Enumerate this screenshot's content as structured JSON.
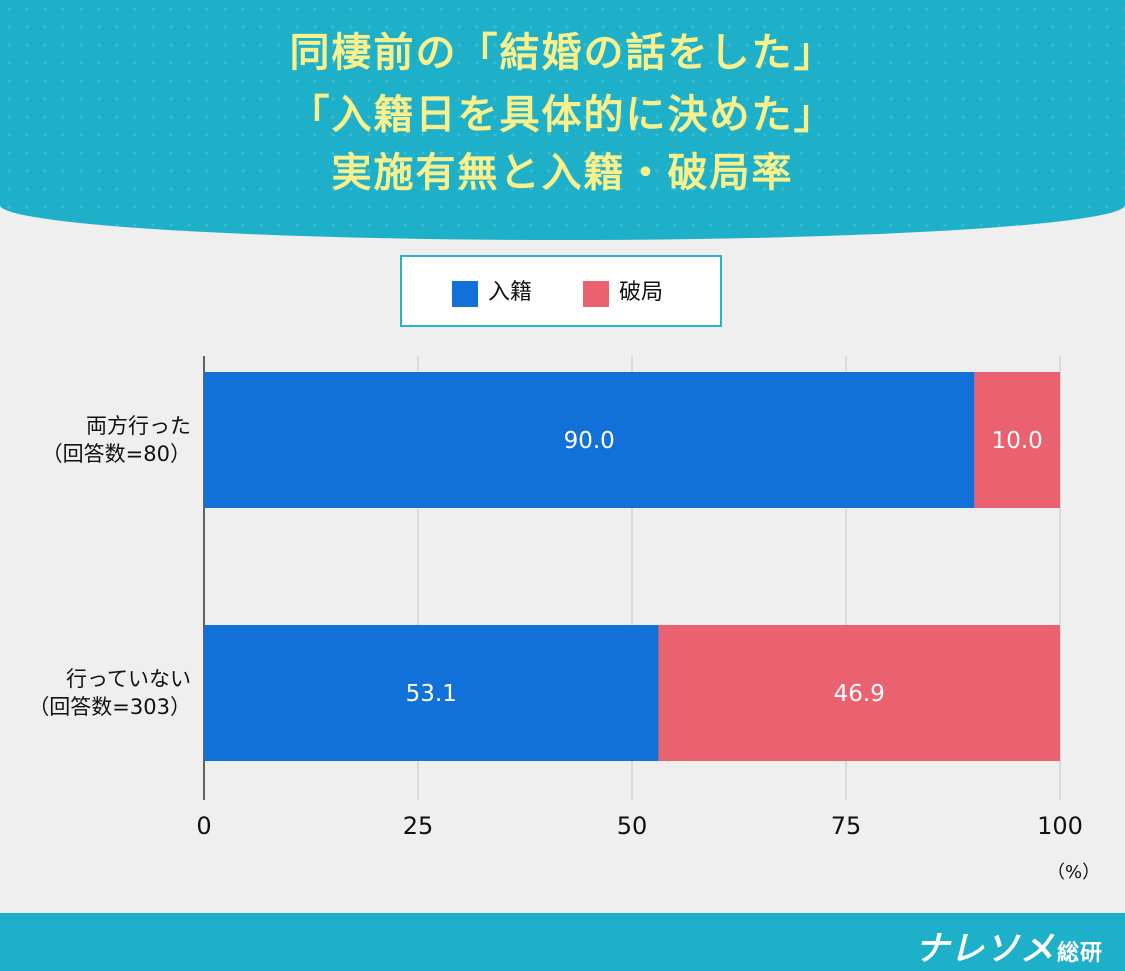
{
  "title": {
    "line1": "同棲前の「結婚の話をした」",
    "line2": "「入籍日を具体的に決めた」",
    "line3": "実施有無と入籍・破局率"
  },
  "legend": [
    {
      "label": "入籍",
      "color": "#1271d8"
    },
    {
      "label": "破局",
      "color": "#ea6170"
    }
  ],
  "axis_unit": "（%）",
  "brand": {
    "main": "ナレソメ",
    "sub": "総研"
  },
  "chart_data": {
    "type": "bar",
    "orientation": "horizontal",
    "stacked": true,
    "categories": [
      {
        "line1": "両方行った",
        "line2": "（回答数=80）"
      },
      {
        "line1": "行っていない",
        "line2": "（回答数=303）"
      }
    ],
    "series": [
      {
        "name": "入籍",
        "values": [
          90.0,
          53.1
        ],
        "labels": [
          "90.0",
          "53.1"
        ],
        "color": "#1271d8"
      },
      {
        "name": "破局",
        "values": [
          10.0,
          46.9
        ],
        "labels": [
          "10.0",
          "46.9"
        ],
        "color": "#ea6170"
      }
    ],
    "xlim": [
      0,
      100
    ],
    "xticks": [
      0,
      25,
      50,
      75,
      100
    ],
    "xtick_labels": [
      "0",
      "25",
      "50",
      "75",
      "100"
    ],
    "xlabel": "（%）",
    "grid": true
  }
}
